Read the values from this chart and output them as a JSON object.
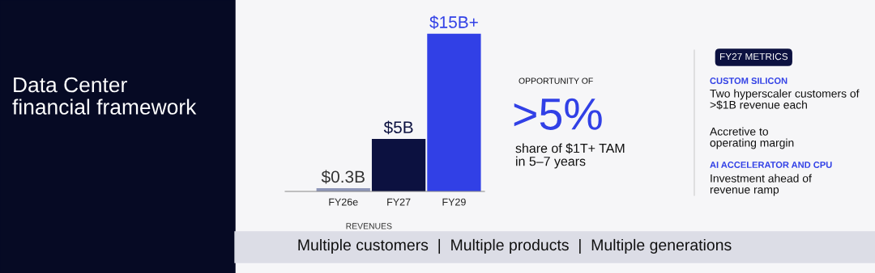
{
  "chart_data": {
    "type": "bar",
    "title": "Data Center\nfinancial framework",
    "xlabel": "REVENUES",
    "categories": [
      "FY26e",
      "FY27",
      "FY29"
    ],
    "values": [
      0.3,
      5,
      15
    ],
    "colors": [
      "#8e96b8",
      "#0c1140",
      "#3140e6"
    ],
    "value_labels": [
      "$0.3B",
      "$5B",
      "$15B+"
    ],
    "annotations": [
      "OPPORTUNITY OF",
      ">5%",
      "share of $1T+ TAM\nin 5–7 years",
      "FY27 METRICS",
      "CUSTOM SILICON",
      "Two hyperscaler customers of\n>$1B revenue each",
      "Accretive to\noperating margin",
      "AI ACCELERATOR AND CPU",
      "Investment ahead of\nrevenue ramp",
      "Multiple customers  |  Multiple products  |  Multiple generations"
    ],
    "grid": false,
    "legend": false
  }
}
